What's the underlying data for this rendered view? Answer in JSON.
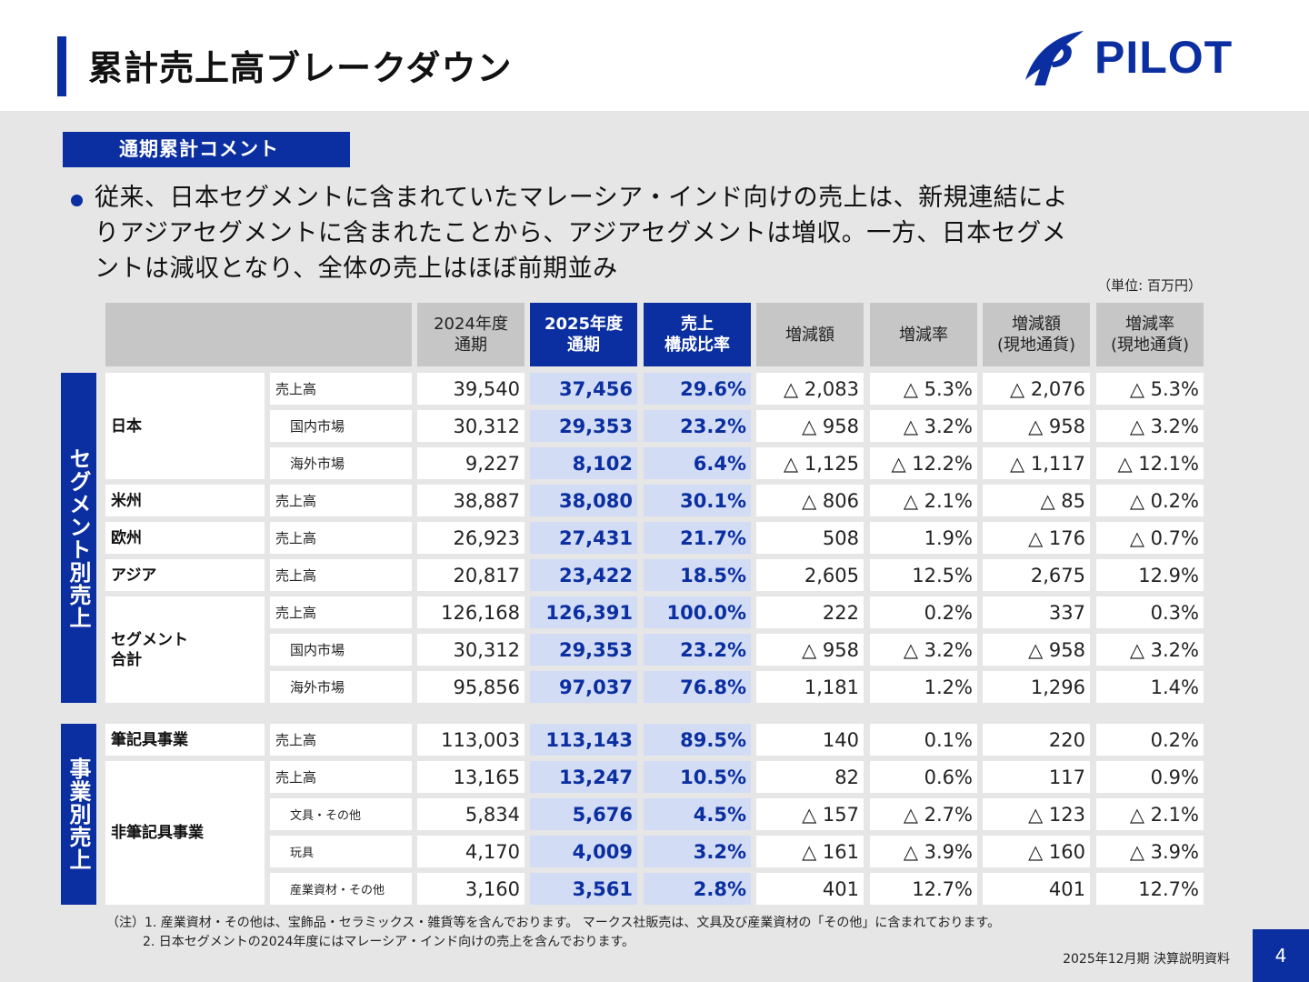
{
  "title": "累計売上高ブレークダウン",
  "logo_text": "PILOT",
  "comment_tag": "通期累計コメント",
  "comment_lines": [
    "従来、日本セグメントに含まれていたマレーシア・インド向けの売上は、新規連結によ",
    "りアジアセグメントに含まれたことから、アジアセグメントは増収。一方、日本セグメ",
    "ントは減収となり、全体の売上はほぼ前期並み"
  ],
  "unit_note": "（単位: 百万円）",
  "headers": [
    [
      "2024年度",
      "通期"
    ],
    [
      "2025年度",
      "通期"
    ],
    [
      "売上",
      "構成比率"
    ],
    [
      "増減額"
    ],
    [
      "増減率"
    ],
    [
      "増減額",
      "(現地通貨)"
    ],
    [
      "増減率",
      "(現地通貨)"
    ]
  ],
  "side_labels": {
    "segment": "セグメント別売上",
    "business": "事業別売上"
  },
  "segment_groups": [
    {
      "label": "日本",
      "rows": [
        0,
        1,
        2
      ]
    },
    {
      "label": "米州",
      "rows": [
        3
      ]
    },
    {
      "label": "欧州",
      "rows": [
        4
      ]
    },
    {
      "label": "アジア",
      "rows": [
        5
      ]
    },
    {
      "label": "セグメント\n合計",
      "rows": [
        6,
        7,
        8
      ]
    }
  ],
  "business_groups": [
    {
      "label": "筆記具事業",
      "rows": [
        0
      ]
    },
    {
      "label": "非筆記具事業",
      "rows": [
        1,
        2,
        3,
        4
      ]
    }
  ],
  "segment_rows": [
    {
      "sub": "売上高",
      "indent": 0,
      "v": [
        "39,540",
        "37,456",
        "29.6%",
        "△ 2,083",
        "△ 5.3%",
        "△ 2,076",
        "△ 5.3%"
      ]
    },
    {
      "sub": "国内市場",
      "indent": 1,
      "v": [
        "30,312",
        "29,353",
        "23.2%",
        "△ 958",
        "△ 3.2%",
        "△ 958",
        "△ 3.2%"
      ]
    },
    {
      "sub": "海外市場",
      "indent": 1,
      "v": [
        "9,227",
        "8,102",
        "6.4%",
        "△ 1,125",
        "△ 12.2%",
        "△ 1,117",
        "△ 12.1%"
      ]
    },
    {
      "sub": "売上高",
      "indent": 0,
      "v": [
        "38,887",
        "38,080",
        "30.1%",
        "△ 806",
        "△ 2.1%",
        "△ 85",
        "△ 0.2%"
      ]
    },
    {
      "sub": "売上高",
      "indent": 0,
      "v": [
        "26,923",
        "27,431",
        "21.7%",
        "508",
        "1.9%",
        "△ 176",
        "△ 0.7%"
      ]
    },
    {
      "sub": "売上高",
      "indent": 0,
      "v": [
        "20,817",
        "23,422",
        "18.5%",
        "2,605",
        "12.5%",
        "2,675",
        "12.9%"
      ]
    },
    {
      "sub": "売上高",
      "indent": 0,
      "v": [
        "126,168",
        "126,391",
        "100.0%",
        "222",
        "0.2%",
        "337",
        "0.3%"
      ]
    },
    {
      "sub": "国内市場",
      "indent": 1,
      "v": [
        "30,312",
        "29,353",
        "23.2%",
        "△ 958",
        "△ 3.2%",
        "△ 958",
        "△ 3.2%"
      ]
    },
    {
      "sub": "海外市場",
      "indent": 1,
      "v": [
        "95,856",
        "97,037",
        "76.8%",
        "1,181",
        "1.2%",
        "1,296",
        "1.4%"
      ]
    }
  ],
  "business_rows": [
    {
      "sub": "売上高",
      "indent": 0,
      "v": [
        "113,003",
        "113,143",
        "89.5%",
        "140",
        "0.1%",
        "220",
        "0.2%"
      ]
    },
    {
      "sub": "売上高",
      "indent": 0,
      "v": [
        "13,165",
        "13,247",
        "10.5%",
        "82",
        "0.6%",
        "117",
        "0.9%"
      ]
    },
    {
      "sub": "文具・その他",
      "indent": 2,
      "v": [
        "5,834",
        "5,676",
        "4.5%",
        "△ 157",
        "△ 2.7%",
        "△ 123",
        "△ 2.1%"
      ]
    },
    {
      "sub": "玩具",
      "indent": 2,
      "v": [
        "4,170",
        "4,009",
        "3.2%",
        "△ 161",
        "△ 3.9%",
        "△ 160",
        "△ 3.9%"
      ]
    },
    {
      "sub": "産業資材・その他",
      "indent": 2,
      "v": [
        "3,160",
        "3,561",
        "2.8%",
        "401",
        "12.7%",
        "401",
        "12.7%"
      ]
    }
  ],
  "notes": [
    "（注）1. 産業資材・その他は、宝飾品・セラミックス・雑貨等を含んでおります。 マークス社販売は、文具及び産業資材の「その他」に含まれております。",
    "2. 日本セグメントの2024年度にはマレーシア・インド向けの売上を含んでおります。"
  ],
  "footer_doc": "2025年12月期 決算説明資料",
  "page_number": "4",
  "colors": {
    "brand": "#0b2fa0",
    "highlight": "#d2dcf5",
    "header_gray": "#c6c6c6",
    "background": "#e6e6e6"
  }
}
